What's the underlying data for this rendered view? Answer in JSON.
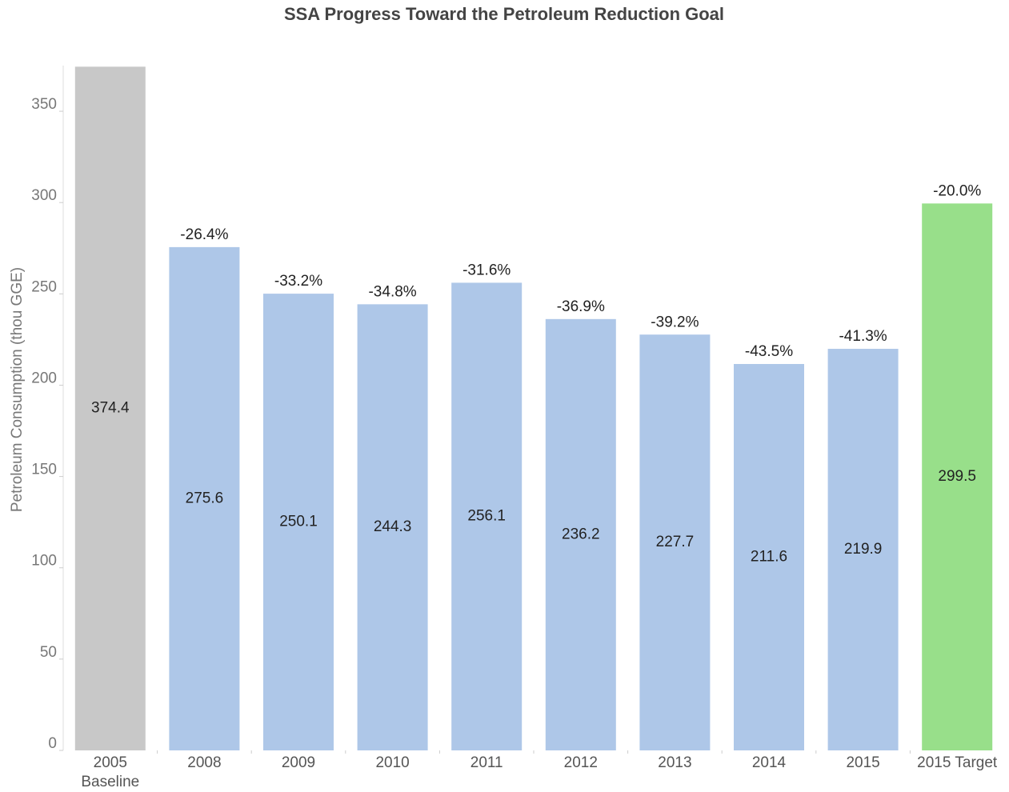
{
  "chart_data": {
    "type": "bar",
    "title": "SSA Progress Toward the Petroleum Reduction Goal",
    "y_label": "Petroleum Consumption (thou GGE)",
    "categories": [
      "2005\nBaseline",
      "2008",
      "2009",
      "2010",
      "2011",
      "2012",
      "2013",
      "2014",
      "2015",
      "2015 Target"
    ],
    "values": [
      374.4,
      275.6,
      250.1,
      244.3,
      256.1,
      236.2,
      227.7,
      211.6,
      219.9,
      299.5
    ],
    "colors": [
      "#c8c8c8",
      "#aec7e8",
      "#aec7e8",
      "#aec7e8",
      "#aec7e8",
      "#aec7e8",
      "#aec7e8",
      "#aec7e8",
      "#aec7e8",
      "#98df8a"
    ],
    "annotations": [
      null,
      "-26.4%",
      "-33.2%",
      "-34.8%",
      "-31.6%",
      "-36.9%",
      "-39.2%",
      "-43.5%",
      "-41.3%",
      "-20.0%"
    ],
    "ylim": [
      0,
      375
    ],
    "yticks": [
      0,
      50,
      100,
      150,
      200,
      250,
      300,
      350
    ],
    "grid": false
  }
}
